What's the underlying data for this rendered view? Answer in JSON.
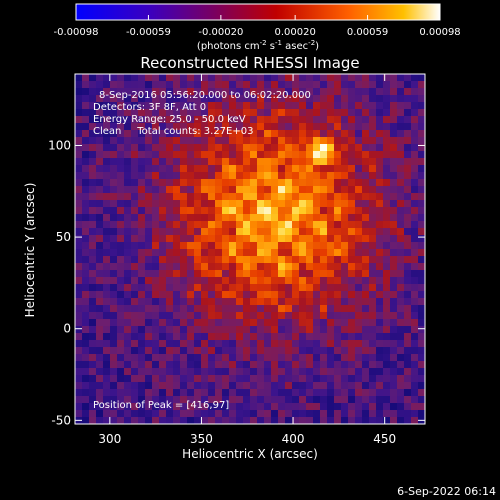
{
  "chart_data": {
    "type": "heatmap",
    "title": "Reconstructed RHESSI Image",
    "xlabel": "Heliocentric X (arcsec)",
    "ylabel": "Heliocentric Y (arcsec)",
    "xlim": [
      281,
      472
    ],
    "ylim": [
      -52,
      139
    ],
    "x_ticks": [
      300,
      350,
      400,
      450
    ],
    "y_ticks": [
      -50,
      0,
      50,
      100
    ],
    "colorbar": {
      "ticks": [
        "-0.00098",
        "-0.00059",
        "-0.00020",
        "0.00020",
        "0.00059",
        "0.00098"
      ],
      "range": [
        -0.00098,
        0.00098
      ],
      "units_label": "(photons cm",
      "units_sup1": "-2",
      "units_mid": " s",
      "units_sup2": "-1",
      "units_end": " asec",
      "units_sup3": "-2",
      "units_close": ")"
    },
    "annotations": [
      "8-Sep-2016 05:56:20.000 to 06:02:20.000",
      "Detectors: 3F 8F, Att 0",
      "Energy Range: 25.0 - 50.0 keV",
      "Clean     Total counts: 3.27E+03"
    ],
    "peak_label": "Position of Peak = [416,97]",
    "peak": [
      416,
      97
    ],
    "emission_center": [
      390,
      62
    ],
    "colormap": "rainbow-fire"
  },
  "footer": {
    "timestamp": "6-Sep-2022 06:14"
  }
}
